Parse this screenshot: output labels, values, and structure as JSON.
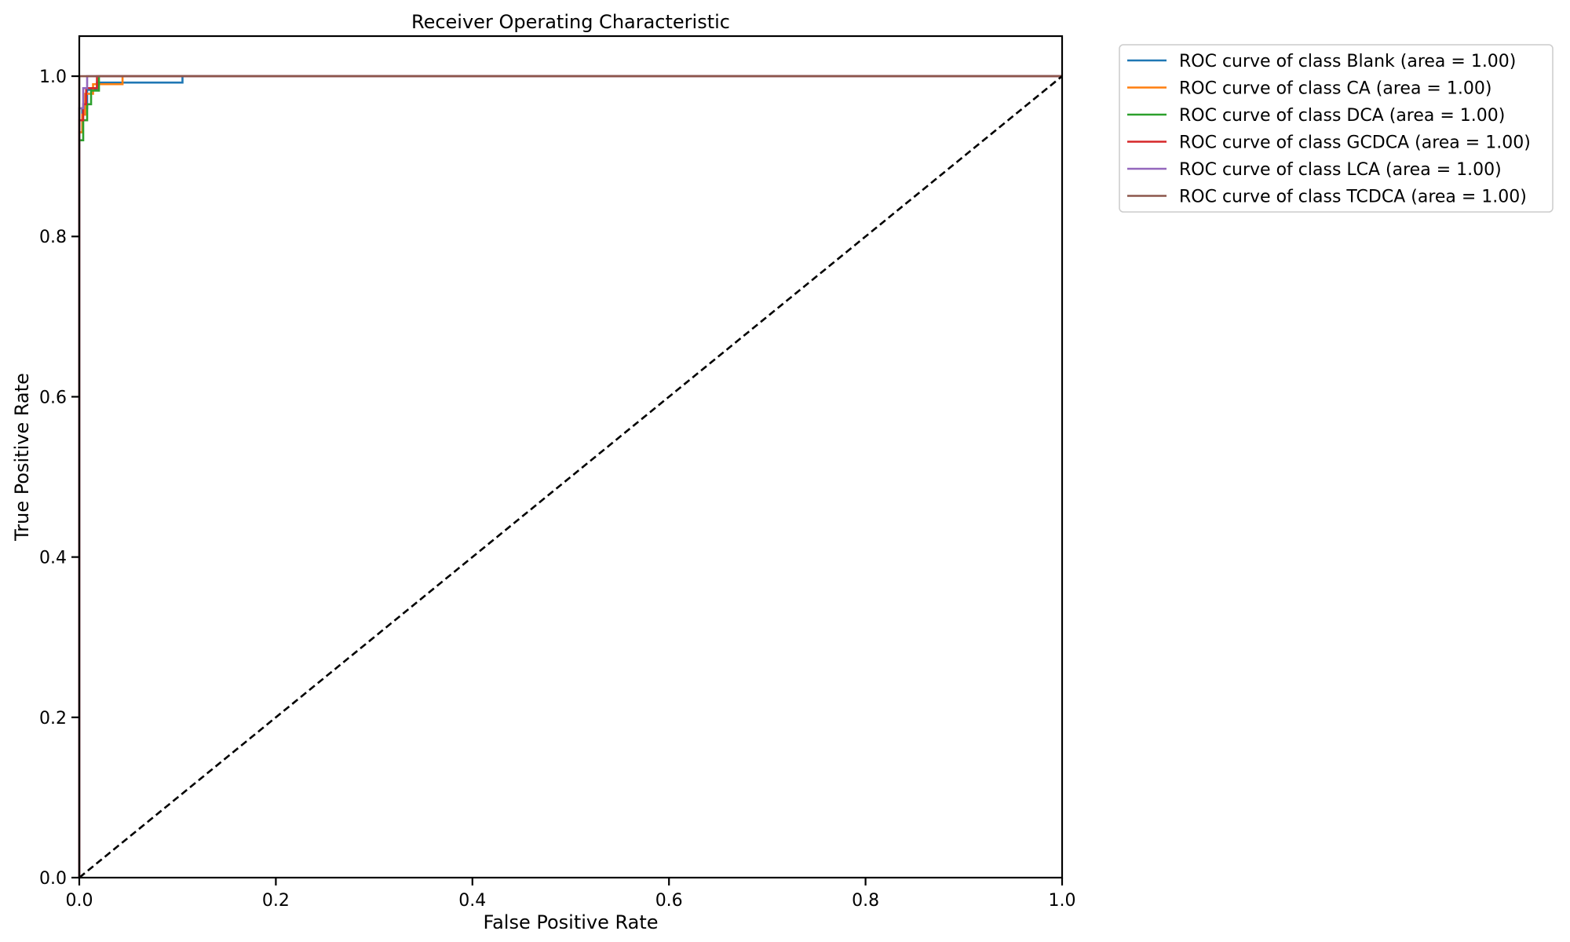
{
  "chart_data": {
    "type": "line",
    "title": "Receiver Operating Characteristic",
    "xlabel": "False Positive Rate",
    "ylabel": "True Positive Rate",
    "xlim": [
      0.0,
      1.0
    ],
    "ylim": [
      0.0,
      1.05
    ],
    "xticks": [
      "0.0",
      "0.2",
      "0.4",
      "0.6",
      "0.8",
      "1.0"
    ],
    "yticks": [
      "0.0",
      "0.2",
      "0.4",
      "0.6",
      "0.8",
      "1.0"
    ],
    "grid": false,
    "legend_position": "outside-upper-right",
    "series": [
      {
        "name": "ROC curve of class Blank (area = 1.00)",
        "color": "#1f77b4",
        "x": [
          0.0,
          0.0,
          0.003,
          0.003,
          0.008,
          0.008,
          0.018,
          0.018,
          0.105,
          0.105,
          1.0
        ],
        "y": [
          0.0,
          0.93,
          0.93,
          0.96,
          0.96,
          0.983,
          0.983,
          0.992,
          0.992,
          1.0,
          1.0
        ]
      },
      {
        "name": "ROC curve of class CA (area = 1.00)",
        "color": "#ff7f0e",
        "x": [
          0.0,
          0.0,
          0.003,
          0.003,
          0.006,
          0.006,
          0.014,
          0.014,
          0.044,
          0.044,
          1.0
        ],
        "y": [
          0.0,
          0.93,
          0.93,
          0.952,
          0.952,
          0.978,
          0.978,
          0.99,
          0.99,
          1.0,
          1.0
        ]
      },
      {
        "name": "ROC curve of class DCA (area = 1.00)",
        "color": "#2ca02c",
        "x": [
          0.0,
          0.0,
          0.004,
          0.004,
          0.008,
          0.008,
          0.012,
          0.012,
          0.02,
          0.02,
          1.0
        ],
        "y": [
          0.0,
          0.92,
          0.92,
          0.945,
          0.945,
          0.965,
          0.965,
          0.982,
          0.982,
          1.0,
          1.0
        ]
      },
      {
        "name": "ROC curve of class GCDCA (area = 1.00)",
        "color": "#d62728",
        "x": [
          0.0,
          0.0,
          0.004,
          0.004,
          0.007,
          0.007,
          0.018,
          0.018,
          1.0
        ],
        "y": [
          0.0,
          0.945,
          0.945,
          0.965,
          0.965,
          0.985,
          0.985,
          1.0,
          1.0
        ]
      },
      {
        "name": "ROC curve of class LCA (area = 1.00)",
        "color": "#9467bd",
        "x": [
          0.0,
          0.0,
          0.004,
          0.004,
          0.008,
          0.008,
          1.0
        ],
        "y": [
          0.0,
          0.96,
          0.96,
          0.985,
          0.985,
          1.0,
          1.0
        ]
      },
      {
        "name": "ROC curve of class TCDCA (area = 1.00)",
        "color": "#8c564b",
        "x": [
          0.0,
          0.0,
          1.0
        ],
        "y": [
          0.0,
          1.0,
          1.0
        ]
      }
    ],
    "reference_line": {
      "x": [
        0.0,
        1.0
      ],
      "y": [
        0.0,
        1.0
      ],
      "color": "#000000",
      "style": "dashed"
    }
  }
}
